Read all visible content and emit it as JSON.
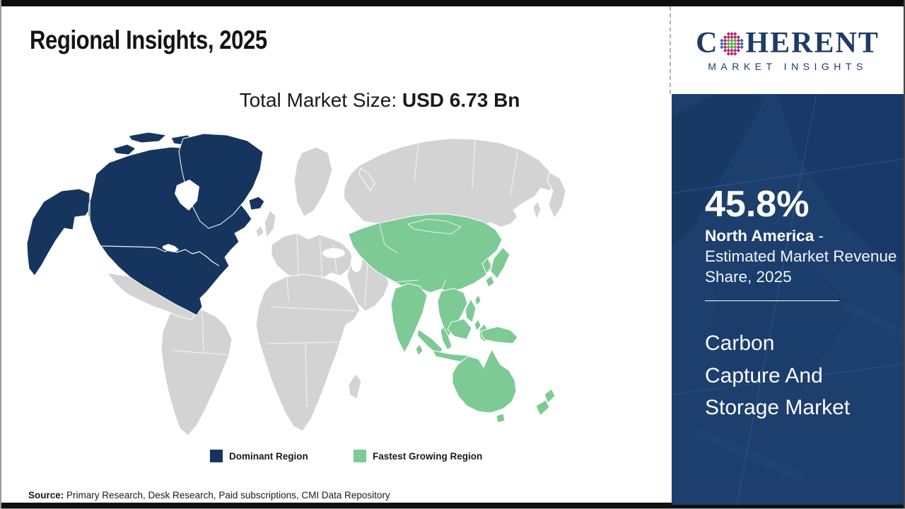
{
  "header": {
    "title": "Regional Insights, 2025",
    "market_size_label": "Total Market Size: ",
    "market_size_value": "USD 6.73 Bn"
  },
  "logo": {
    "name_first": "C",
    "name_rest": "HERENT",
    "tagline": "MARKET INSIGHTS",
    "globe_icon": "dotted-globe-icon",
    "brand_color": "#1f3a68",
    "globe_dot_colors": {
      "green": "#55aa4d",
      "magenta": "#c0227b",
      "blue": "#2f6eb6"
    }
  },
  "map": {
    "colors": {
      "dominant": "#16355e",
      "fastest": "#7dca95",
      "other": "#d3d3d3"
    },
    "legend": [
      {
        "key": "dominant",
        "label": "Dominant Region"
      },
      {
        "key": "fastest",
        "label": "Fastest Growing Region"
      }
    ]
  },
  "sidebar": {
    "background_color": "#1d3f6e",
    "share_value": "45.8%",
    "share_region": "North America",
    "share_description": " - Estimated Market Revenue Share, 2025",
    "market_name_lines": [
      "Carbon",
      "Capture And",
      "Storage Market"
    ]
  },
  "footer": {
    "source_label": "Source:",
    "source_text": " Primary Research, Desk Research, Paid subscriptions, CMI Data Repository"
  }
}
